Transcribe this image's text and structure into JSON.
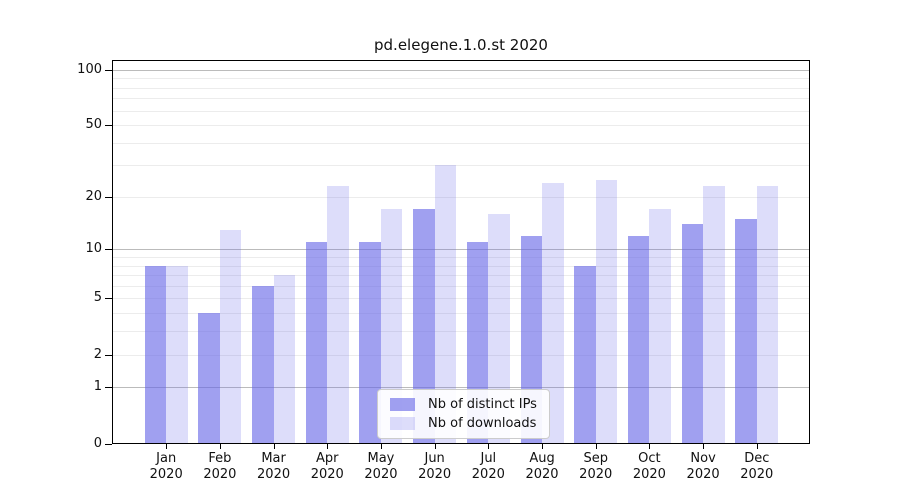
{
  "chart_data": {
    "type": "bar",
    "title": "pd.elegene.1.0.st 2020",
    "categories": [
      "Jan",
      "Feb",
      "Mar",
      "Apr",
      "May",
      "Jun",
      "Jul",
      "Aug",
      "Sep",
      "Oct",
      "Nov",
      "Dec"
    ],
    "year": "2020",
    "series": [
      {
        "name": "Nb of distinct IPs",
        "color": "#6666e6",
        "alpha": 0.62,
        "values": [
          8,
          4,
          6,
          11,
          11,
          17,
          11,
          12,
          8,
          12,
          14,
          15
        ]
      },
      {
        "name": "Nb of downloads",
        "color": "#6666e6",
        "alpha": 0.22,
        "values": [
          8,
          13,
          7,
          23,
          17,
          30,
          16,
          24,
          25,
          17,
          23,
          23
        ]
      }
    ],
    "yticks": [
      0,
      1,
      2,
      5,
      10,
      20,
      50,
      100
    ],
    "major_gridlines": [
      1,
      10,
      100
    ],
    "minor_gridlines": [
      2,
      3,
      4,
      5,
      6,
      7,
      8,
      9,
      20,
      30,
      40,
      50,
      60,
      70,
      80,
      90
    ],
    "scale": "log10(1+x)",
    "ylim": [
      0,
      113
    ],
    "grid": true,
    "legend_position": "lower center"
  },
  "colors": {
    "major_grid": "#bbbbbb",
    "minor_grid": "#ececec",
    "spine": "#000000",
    "text": "#111111",
    "legend_border": "#cccccc",
    "background": "#ffffff"
  }
}
